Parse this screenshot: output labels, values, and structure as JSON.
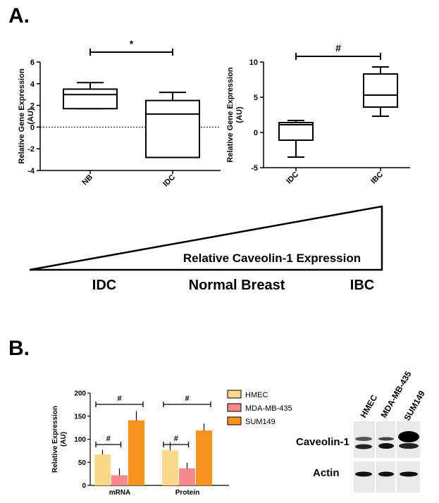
{
  "panel_labels": {
    "a": "A.",
    "b": "B."
  },
  "chart_data": [
    {
      "id": "box1",
      "type": "box",
      "ylabel": "Relative Gene Expression\n(AU)",
      "ylim": [
        -4,
        6
      ],
      "yticks": [
        -4,
        -2,
        0,
        2,
        4,
        6
      ],
      "categories": [
        "NB",
        "IDC"
      ],
      "boxes": [
        {
          "category": "NB",
          "min": 1.7,
          "q1": 1.7,
          "median": 3.0,
          "q3": 3.5,
          "max": 4.1
        },
        {
          "category": "IDC",
          "min": -2.8,
          "q1": -2.8,
          "median": 1.2,
          "q3": 2.45,
          "max": 3.2
        }
      ],
      "reference_line": 0,
      "significance": {
        "from": "NB",
        "to": "IDC",
        "label": "*"
      }
    },
    {
      "id": "box2",
      "type": "box",
      "ylabel": "Relative Gene Expression\n(AU)",
      "ylim": [
        -5,
        10
      ],
      "yticks": [
        -5,
        0,
        5,
        10
      ],
      "categories": [
        "IDC",
        "IBC"
      ],
      "boxes": [
        {
          "category": "IDC",
          "min": -3.5,
          "q1": -1.1,
          "median": 1.1,
          "q3": 1.4,
          "max": 1.7
        },
        {
          "category": "IBC",
          "min": 2.3,
          "q1": 3.6,
          "median": 5.3,
          "q3": 8.3,
          "max": 9.3
        }
      ],
      "significance": {
        "from": "IDC",
        "to": "IBC",
        "label": "#"
      }
    },
    {
      "id": "bar1",
      "type": "bar",
      "ylabel": "Relative Expression\n(AU)",
      "ylim": [
        0,
        200
      ],
      "yticks": [
        0,
        50,
        100,
        150,
        200
      ],
      "categories": [
        "mRNA",
        "Protein"
      ],
      "series": [
        {
          "name": "HMEC",
          "color": "#fcd98a",
          "values": [
            67,
            76
          ],
          "errors": [
            10,
            18
          ]
        },
        {
          "name": "MDA-MB-435",
          "color": "#f7898a",
          "values": [
            22,
            37
          ],
          "errors": [
            15,
            12
          ]
        },
        {
          "name": "SUM149",
          "color": "#f7941d",
          "values": [
            141,
            119
          ],
          "errors": [
            20,
            15
          ]
        }
      ],
      "significance": [
        {
          "category": "mRNA",
          "from": "HMEC",
          "to": "MDA-MB-435",
          "label": "#"
        },
        {
          "category": "mRNA",
          "from": "HMEC",
          "to": "SUM149",
          "label": "#"
        },
        {
          "category": "Protein",
          "from": "HMEC",
          "to": "MDA-MB-435",
          "label": "#"
        },
        {
          "category": "Protein",
          "from": "HMEC",
          "to": "SUM149",
          "label": "#"
        }
      ]
    }
  ],
  "triangle": {
    "title": "Relative Caveolin-1 Expression",
    "labels": [
      "IDC",
      "Normal Breast",
      "IBC"
    ]
  },
  "blot": {
    "lanes": [
      "HMEC",
      "MDA-MB-435",
      "SUM149"
    ],
    "rows": [
      "Caveolin-1",
      "Actin"
    ]
  }
}
